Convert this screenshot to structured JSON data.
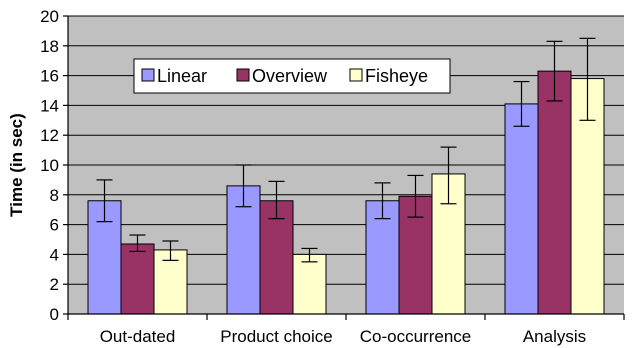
{
  "chart_data": {
    "type": "bar",
    "title": "",
    "xlabel": "",
    "ylabel": "Time (in sec)",
    "ylim": [
      0,
      20
    ],
    "yticks": [
      0,
      2,
      4,
      6,
      8,
      10,
      12,
      14,
      16,
      18,
      20
    ],
    "grid": true,
    "legend_position": "top-left",
    "categories": [
      "Out-dated",
      "Product choice",
      "Co-occurrence",
      "Analysis"
    ],
    "series": [
      {
        "name": "Linear",
        "color": "#9999ff",
        "values": [
          7.6,
          8.6,
          7.6,
          14.1
        ],
        "error_low": [
          6.2,
          7.2,
          6.4,
          12.6
        ],
        "error_high": [
          9.0,
          10.0,
          8.8,
          15.6
        ]
      },
      {
        "name": "Overview",
        "color": "#993366",
        "values": [
          4.7,
          7.6,
          7.9,
          16.3
        ],
        "error_low": [
          4.2,
          6.4,
          6.5,
          14.3
        ],
        "error_high": [
          5.3,
          8.9,
          9.3,
          18.3
        ]
      },
      {
        "name": "Fisheye",
        "color": "#ffffcc",
        "values": [
          4.3,
          4.0,
          9.4,
          15.8
        ],
        "error_low": [
          3.6,
          3.5,
          7.4,
          13.0
        ],
        "error_high": [
          4.9,
          4.4,
          11.2,
          18.5
        ]
      }
    ],
    "plot_background": "#c0c0c0"
  }
}
